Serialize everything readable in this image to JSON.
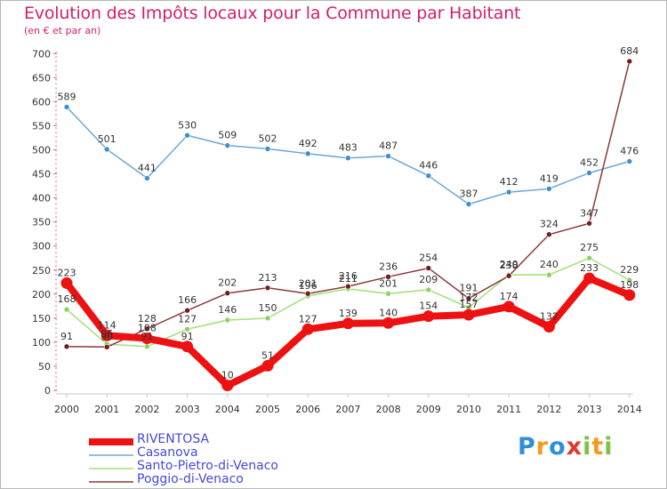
{
  "header": {
    "title": "Evolution des Impôts locaux pour la Commune par Habitant",
    "subtitle": "(en € et par an)"
  },
  "logo": {
    "letters": [
      "P",
      "r",
      "o",
      "x",
      "i",
      "t",
      "i"
    ]
  },
  "chart_data": {
    "type": "line",
    "title": "Evolution des Impôts locaux pour la Commune par Habitant",
    "subtitle": "(en € et par an)",
    "xlabel": "",
    "ylabel": "",
    "ylim": [
      0,
      700
    ],
    "yticks": [
      0,
      50,
      100,
      150,
      200,
      250,
      300,
      350,
      400,
      450,
      500,
      550,
      600,
      650,
      700
    ],
    "grid": false,
    "legend_position": "bottom-left",
    "categories": [
      "2000",
      "2001",
      "2002",
      "2003",
      "2004",
      "2005",
      "2006",
      "2007",
      "2008",
      "2009",
      "2010",
      "2011",
      "2012",
      "2013",
      "2014"
    ],
    "series": [
      {
        "name": "RIVENTOSA",
        "color": "#ee1111",
        "values": [
          223,
          114,
          108,
          91,
          10,
          51,
          127,
          139,
          140,
          154,
          157,
          174,
          132,
          233,
          198
        ]
      },
      {
        "name": "Casanova",
        "color": "#6ea7d6",
        "marker": "#3e8ed0",
        "values": [
          589,
          501,
          441,
          530,
          509,
          502,
          492,
          483,
          487,
          446,
          387,
          412,
          419,
          452,
          476
        ]
      },
      {
        "name": "Santo-Pietro-di-Venaco",
        "color": "#9fe07a",
        "marker": "#8bd35e",
        "values": [
          168,
          96,
          91,
          127,
          146,
          150,
          196,
          211,
          201,
          209,
          172,
          240,
          240,
          275,
          229
        ]
      },
      {
        "name": "Poggio-di-Venaco",
        "color": "#8a3a3a",
        "marker": "#6e1f1f",
        "values": [
          91,
          90,
          128,
          166,
          202,
          213,
          201,
          216,
          236,
          254,
          191,
          238,
          324,
          347,
          684
        ]
      }
    ]
  }
}
